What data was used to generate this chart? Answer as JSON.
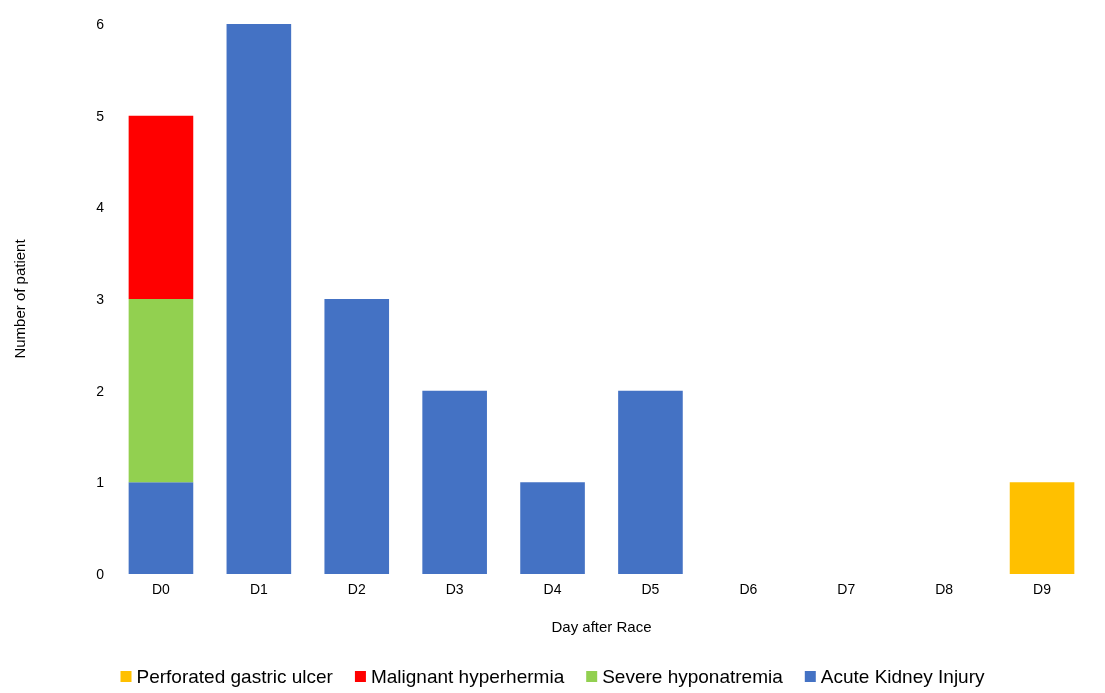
{
  "chart_data": {
    "type": "bar",
    "stacked": true,
    "xlabel": "Day after Race",
    "ylabel": "Number of patient",
    "categories": [
      "D0",
      "D1",
      "D2",
      "D3",
      "D4",
      "D5",
      "D6",
      "D7",
      "D8",
      "D9"
    ],
    "series": [
      {
        "name": "Acute Kidney Injury",
        "color": "#4472c4",
        "values": [
          1,
          6,
          3,
          2,
          1,
          2,
          null,
          null,
          null,
          null
        ]
      },
      {
        "name": "Severe hyponatremia",
        "color": "#92d050",
        "values": [
          2,
          null,
          null,
          null,
          null,
          null,
          null,
          null,
          null,
          null
        ]
      },
      {
        "name": "Malignant hyperhermia",
        "color": "#ff0000",
        "values": [
          2,
          null,
          null,
          null,
          null,
          null,
          null,
          null,
          null,
          null
        ]
      },
      {
        "name": "Perforated gastric ulcer",
        "color": "#ffc000",
        "values": [
          null,
          null,
          null,
          null,
          null,
          null,
          null,
          null,
          null,
          1
        ]
      }
    ],
    "ylim": [
      0,
      6
    ],
    "yticks": [
      0,
      1,
      2,
      3,
      4,
      5,
      6
    ],
    "grid": false,
    "legend": "bottom"
  }
}
